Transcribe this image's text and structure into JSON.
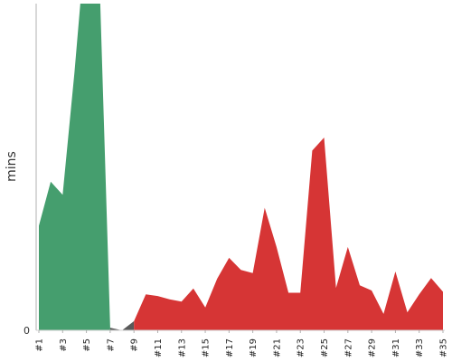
{
  "chart_data": {
    "type": "area",
    "ylabel": "mins",
    "xlabel": "",
    "title": "",
    "y_tick_label": "0",
    "ylim": [
      0,
      100
    ],
    "colors": {
      "pass": "#459e6e",
      "aborted": "#595959",
      "fail": "#d63535",
      "axis": "#b0b0b0"
    },
    "categories": [
      "#1",
      "#2",
      "#3",
      "#4",
      "#5",
      "#6",
      "#7",
      "#8",
      "#9",
      "#10",
      "#11",
      "#12",
      "#13",
      "#14",
      "#15",
      "#16",
      "#17",
      "#18",
      "#19",
      "#20",
      "#21",
      "#22",
      "#23",
      "#24",
      "#25",
      "#26",
      "#27",
      "#28",
      "#29",
      "#30",
      "#31",
      "#32",
      "#33",
      "#34",
      "#35"
    ],
    "tick_labels": [
      "#1",
      "#3",
      "#5",
      "#7",
      "#9",
      "#11",
      "#13",
      "#15",
      "#17",
      "#19",
      "#21",
      "#23",
      "#25",
      "#27",
      "#29",
      "#31",
      "#33",
      "#35"
    ],
    "values": [
      32,
      45.5,
      41.5,
      79,
      122,
      120,
      0.8,
      0,
      2.8,
      11,
      10.5,
      9.5,
      8.8,
      12.8,
      7,
      15.8,
      22.2,
      18.5,
      17.5,
      37.5,
      25.5,
      11.5,
      11.5,
      55,
      59,
      13,
      25.5,
      13.8,
      12.2,
      5,
      18,
      5.5,
      11,
      16,
      11.8
    ],
    "status": [
      "pass",
      "pass",
      "pass",
      "pass",
      "pass",
      "pass",
      "aborted",
      "aborted",
      "fail",
      "fail",
      "fail",
      "fail",
      "fail",
      "fail",
      "fail",
      "fail",
      "fail",
      "fail",
      "fail",
      "fail",
      "fail",
      "fail",
      "fail",
      "fail",
      "fail",
      "fail",
      "fail",
      "fail",
      "fail",
      "fail",
      "fail",
      "fail",
      "fail",
      "fail",
      "fail"
    ]
  }
}
